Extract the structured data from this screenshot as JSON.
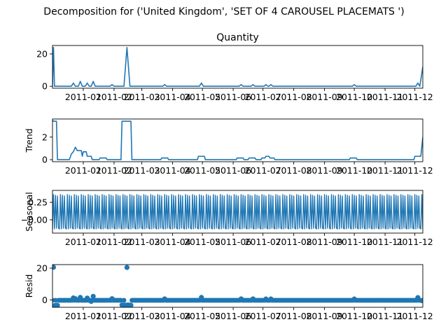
{
  "figure": {
    "suptitle": "Decomposition for ('United Kingdom', 'SET OF 4 CAROUSEL PLACEMATS ')"
  },
  "chart_data": {
    "type": "line",
    "series_color": "#1f77b4",
    "x_range": [
      "2010-12-01",
      "2011-12-09"
    ],
    "x_ticks": [
      "2011-01",
      "2011-02",
      "2011-03",
      "2011-04",
      "2011-05",
      "2011-06",
      "2011-07",
      "2011-08",
      "2011-09",
      "2011-10",
      "2011-11",
      "2011-12"
    ],
    "panels": [
      {
        "title": "Quantity",
        "ylabel": "",
        "style": "line",
        "ylim": [
          -1.2,
          25.2
        ],
        "yticks": [
          0,
          20
        ],
        "points": [
          [
            "2010-12-01",
            0
          ],
          [
            "2010-12-02",
            24
          ],
          [
            "2010-12-03",
            0
          ],
          [
            "2010-12-20",
            0
          ],
          [
            "2010-12-22",
            2
          ],
          [
            "2010-12-24",
            0
          ],
          [
            "2010-12-27",
            0
          ],
          [
            "2010-12-29",
            3
          ],
          [
            "2010-12-31",
            0
          ],
          [
            "2011-01-03",
            0
          ],
          [
            "2011-01-05",
            2
          ],
          [
            "2011-01-07",
            0
          ],
          [
            "2011-01-09",
            0
          ],
          [
            "2011-01-11",
            3
          ],
          [
            "2011-01-13",
            0
          ],
          [
            "2011-01-28",
            0
          ],
          [
            "2011-01-30",
            1
          ],
          [
            "2011-02-01",
            0
          ],
          [
            "2011-02-11",
            0
          ],
          [
            "2011-02-14",
            24
          ],
          [
            "2011-02-17",
            0
          ],
          [
            "2011-03-22",
            0
          ],
          [
            "2011-03-24",
            1
          ],
          [
            "2011-03-26",
            0
          ],
          [
            "2011-04-28",
            0
          ],
          [
            "2011-04-30",
            2
          ],
          [
            "2011-05-02",
            0
          ],
          [
            "2011-06-07",
            0
          ],
          [
            "2011-06-09",
            1
          ],
          [
            "2011-06-11",
            0
          ],
          [
            "2011-06-19",
            0
          ],
          [
            "2011-06-21",
            1
          ],
          [
            "2011-06-23",
            0
          ],
          [
            "2011-07-02",
            0
          ],
          [
            "2011-07-04",
            1
          ],
          [
            "2011-07-06",
            0
          ],
          [
            "2011-07-07",
            0
          ],
          [
            "2011-07-09",
            1
          ],
          [
            "2011-07-11",
            0
          ],
          [
            "2011-09-29",
            0
          ],
          [
            "2011-10-01",
            1
          ],
          [
            "2011-10-03",
            0
          ],
          [
            "2011-12-02",
            0
          ],
          [
            "2011-12-04",
            2
          ],
          [
            "2011-12-06",
            0
          ],
          [
            "2011-12-09",
            12
          ]
        ]
      },
      {
        "title": "",
        "ylabel": "Trend",
        "style": "line",
        "ylim": [
          -0.18,
          3.6
        ],
        "yticks": [
          0,
          2
        ],
        "points": [
          [
            "2010-12-01",
            3.5
          ],
          [
            "2010-12-02",
            3.4
          ],
          [
            "2010-12-05",
            3.4
          ],
          [
            "2010-12-06",
            0
          ],
          [
            "2010-12-18",
            0
          ],
          [
            "2010-12-20",
            0.5
          ],
          [
            "2010-12-22",
            0.7
          ],
          [
            "2010-12-24",
            1.1
          ],
          [
            "2010-12-26",
            0.8
          ],
          [
            "2010-12-30",
            0.8
          ],
          [
            "2010-12-31",
            0.3
          ],
          [
            "2011-01-01",
            0.7
          ],
          [
            "2011-01-04",
            0.7
          ],
          [
            "2011-01-05",
            0.3
          ],
          [
            "2011-01-09",
            0.3
          ],
          [
            "2011-01-10",
            0
          ],
          [
            "2011-01-17",
            0
          ],
          [
            "2011-01-18",
            0.15
          ],
          [
            "2011-01-24",
            0.15
          ],
          [
            "2011-01-25",
            0
          ],
          [
            "2011-02-08",
            0
          ],
          [
            "2011-02-09",
            3.4
          ],
          [
            "2011-02-18",
            3.4
          ],
          [
            "2011-02-19",
            0
          ],
          [
            "2011-03-20",
            0
          ],
          [
            "2011-03-21",
            0.15
          ],
          [
            "2011-03-27",
            0.15
          ],
          [
            "2011-03-28",
            0
          ],
          [
            "2011-04-26",
            0
          ],
          [
            "2011-04-27",
            0.3
          ],
          [
            "2011-05-03",
            0.3
          ],
          [
            "2011-05-04",
            0
          ],
          [
            "2011-06-04",
            0
          ],
          [
            "2011-06-05",
            0.15
          ],
          [
            "2011-06-11",
            0.15
          ],
          [
            "2011-06-12",
            0
          ],
          [
            "2011-06-16",
            0
          ],
          [
            "2011-06-17",
            0.15
          ],
          [
            "2011-06-23",
            0.15
          ],
          [
            "2011-06-24",
            0
          ],
          [
            "2011-06-29",
            0
          ],
          [
            "2011-06-30",
            0.15
          ],
          [
            "2011-07-03",
            0.15
          ],
          [
            "2011-07-04",
            0.3
          ],
          [
            "2011-07-07",
            0.3
          ],
          [
            "2011-07-08",
            0.15
          ],
          [
            "2011-07-12",
            0.15
          ],
          [
            "2011-07-13",
            0
          ],
          [
            "2011-09-26",
            0
          ],
          [
            "2011-09-27",
            0.15
          ],
          [
            "2011-10-03",
            0.15
          ],
          [
            "2011-10-04",
            0
          ],
          [
            "2011-11-30",
            0
          ],
          [
            "2011-12-01",
            0.3
          ],
          [
            "2011-12-07",
            0.3
          ],
          [
            "2011-12-09",
            2
          ]
        ]
      },
      {
        "title": "",
        "ylabel": "Seasonal",
        "style": "seasonal",
        "ylim": [
          -0.19,
          0.42
        ],
        "yticks": [
          0.25,
          -0.0
        ],
        "ytick_labels": [
          "0.25",
          "−0.00"
        ],
        "period_days": 7,
        "pattern": [
          -0.13,
          0.36,
          -0.13,
          0.35,
          -0.12,
          0.34,
          -0.12
        ]
      },
      {
        "title": "",
        "ylabel": "Resid",
        "style": "scatter",
        "ylim": [
          -4.6,
          22.2
        ],
        "yticks": [
          0,
          20
        ],
        "baseline": -0.2,
        "points": [
          [
            "2010-12-02",
            20.5
          ],
          [
            "2010-12-03",
            -3.5
          ],
          [
            "2010-12-05",
            -3.3
          ],
          [
            "2010-12-06",
            -3.4
          ],
          [
            "2010-12-22",
            1.3
          ],
          [
            "2010-12-24",
            0.8
          ],
          [
            "2010-12-29",
            1.6
          ],
          [
            "2011-01-05",
            1.2
          ],
          [
            "2011-01-11",
            2.3
          ],
          [
            "2011-01-09",
            -0.9
          ],
          [
            "2011-01-30",
            0.8
          ],
          [
            "2011-02-09",
            -3.2
          ],
          [
            "2011-02-10",
            -3.2
          ],
          [
            "2011-02-12",
            -3.3
          ],
          [
            "2011-02-13",
            -3.2
          ],
          [
            "2011-02-14",
            20.4
          ],
          [
            "2011-02-15",
            -3.1
          ],
          [
            "2011-02-16",
            -3.3
          ],
          [
            "2011-02-17",
            -3.2
          ],
          [
            "2011-02-18",
            -3.3
          ],
          [
            "2011-03-24",
            0.7
          ],
          [
            "2011-04-30",
            1.6
          ],
          [
            "2011-06-09",
            0.7
          ],
          [
            "2011-06-21",
            0.7
          ],
          [
            "2011-07-04",
            0.6
          ],
          [
            "2011-07-09",
            0.6
          ],
          [
            "2011-10-01",
            0.6
          ],
          [
            "2011-12-04",
            1.5
          ],
          [
            "2011-12-08",
            -0.4
          ]
        ]
      }
    ]
  }
}
